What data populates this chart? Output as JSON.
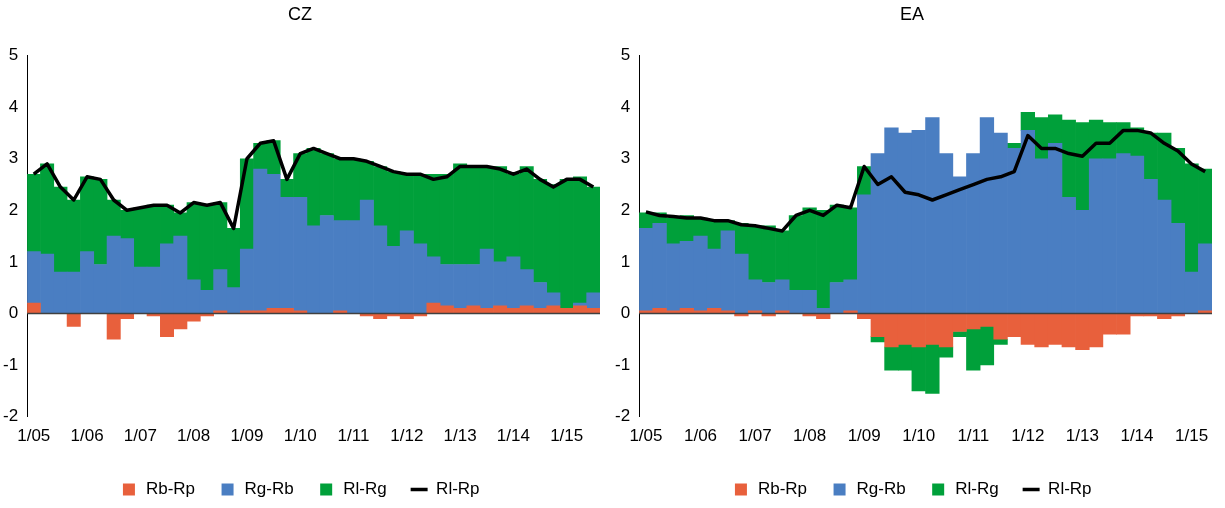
{
  "chart_data": [
    {
      "type": "bar",
      "title": "CZ",
      "stacked": true,
      "legend": "bottom",
      "ylim": [
        -2,
        5
      ],
      "yticks": [
        -2,
        -1,
        0,
        1,
        2,
        3,
        4,
        5
      ],
      "categories": [
        "1/05",
        null,
        null,
        null,
        "1/06",
        null,
        null,
        null,
        "1/07",
        null,
        null,
        null,
        "1/08",
        null,
        null,
        null,
        "1/09",
        null,
        null,
        null,
        "1/10",
        null,
        null,
        null,
        "1/11",
        null,
        null,
        null,
        "1/12",
        null,
        null,
        null,
        "1/13",
        null,
        null,
        null,
        "1/14",
        null,
        null,
        null,
        "1/15",
        null,
        null
      ],
      "ref_lines": [
        {
          "axis": "y",
          "value": 0,
          "color": "#404040"
        }
      ],
      "series": [
        {
          "name": "Rb-Rp",
          "color": "#e8603c",
          "values": [
            0.2,
            0,
            0,
            -0.25,
            0,
            0,
            -0.5,
            -0.1,
            0,
            -0.05,
            -0.45,
            -0.3,
            -0.15,
            -0.05,
            0.05,
            0,
            0.05,
            0.05,
            0.1,
            0.1,
            0.05,
            0,
            0,
            0.05,
            0,
            -0.05,
            -0.1,
            -0.05,
            -0.1,
            -0.05,
            0.2,
            0.15,
            0.1,
            0.15,
            0.1,
            0.15,
            0.1,
            0.15,
            0.1,
            0.15,
            0.1,
            0.15,
            0.1
          ]
        },
        {
          "name": "Rg-Rb",
          "color": "#4a7ec2",
          "values": [
            1.0,
            1.15,
            0.8,
            0.8,
            1.2,
            0.95,
            1.5,
            1.45,
            0.9,
            0.9,
            1.35,
            1.5,
            0.65,
            0.45,
            0.8,
            0.5,
            1.2,
            2.75,
            2.6,
            2.15,
            2.2,
            1.7,
            1.9,
            1.75,
            1.8,
            2.2,
            1.7,
            1.3,
            1.6,
            1.35,
            0.9,
            0.8,
            0.85,
            0.8,
            1.15,
            0.85,
            1.0,
            0.7,
            0.5,
            0.25,
            0.0,
            0.05,
            0.3
          ]
        },
        {
          "name": "Rl-Rg",
          "color": "#00a03a",
          "values": [
            1.5,
            1.75,
            1.65,
            1.4,
            1.45,
            1.65,
            0.7,
            0.55,
            1.15,
            1.2,
            0.75,
            0.45,
            1.5,
            1.65,
            1.3,
            1.15,
            1.75,
            0.5,
            0.65,
            0.35,
            0.85,
            1.5,
            1.2,
            1.2,
            1.2,
            0.75,
            1.15,
            1.45,
            1.1,
            1.35,
            1.6,
            1.75,
            1.95,
            1.9,
            1.6,
            1.85,
            1.6,
            2.0,
            2.0,
            2.1,
            2.5,
            2.45,
            2.05
          ]
        },
        {
          "name": "Rl-Rp",
          "type": "line",
          "color": "#000000",
          "values": [
            2.7,
            2.9,
            2.45,
            2.2,
            2.65,
            2.6,
            2.2,
            2.0,
            2.05,
            2.1,
            2.1,
            1.95,
            2.15,
            2.1,
            2.15,
            1.65,
            3.0,
            3.3,
            3.35,
            2.6,
            3.1,
            3.2,
            3.1,
            3.0,
            3.0,
            2.95,
            2.85,
            2.75,
            2.7,
            2.7,
            2.6,
            2.65,
            2.85,
            2.85,
            2.85,
            2.8,
            2.7,
            2.8,
            2.6,
            2.45,
            2.6,
            2.6,
            2.45
          ]
        }
      ]
    },
    {
      "type": "bar",
      "title": "EA",
      "stacked": true,
      "legend": "bottom",
      "ylim": [
        -2,
        5
      ],
      "yticks": [
        -2,
        -1,
        0,
        1,
        2,
        3,
        4,
        5
      ],
      "categories": [
        "1/05",
        null,
        null,
        null,
        "1/06",
        null,
        null,
        null,
        "1/07",
        null,
        null,
        null,
        "1/08",
        null,
        null,
        null,
        "1/09",
        null,
        null,
        null,
        "1/10",
        null,
        null,
        null,
        "1/11",
        null,
        null,
        null,
        "1/12",
        null,
        null,
        null,
        "1/13",
        null,
        null,
        null,
        "1/14",
        null,
        null,
        null,
        "1/15",
        null
      ],
      "ref_lines": [
        {
          "axis": "y",
          "value": 0,
          "color": "#404040"
        }
      ],
      "series": [
        {
          "name": "Rb-Rp",
          "color": "#e8603c",
          "values": [
            0.05,
            0.1,
            0.05,
            0.1,
            0.05,
            0.1,
            0.05,
            -0.05,
            0.05,
            -0.05,
            0.05,
            0,
            -0.05,
            -0.1,
            0,
            0.05,
            -0.1,
            -0.45,
            -0.65,
            -0.6,
            -0.65,
            -0.6,
            -0.65,
            -0.35,
            -0.3,
            -0.25,
            -0.5,
            -0.45,
            -0.6,
            -0.65,
            -0.6,
            -0.65,
            -0.7,
            -0.65,
            -0.4,
            -0.4,
            -0.05,
            -0.05,
            -0.1,
            -0.05,
            0,
            0.05
          ]
        },
        {
          "name": "Rg-Rb",
          "color": "#4a7ec2",
          "values": [
            1.6,
            1.65,
            1.3,
            1.3,
            1.45,
            1.15,
            1.55,
            1.15,
            0.6,
            0.6,
            0.6,
            0.45,
            0.45,
            0.1,
            0.6,
            0.6,
            2.3,
            3.1,
            3.6,
            3.5,
            3.55,
            3.8,
            3.1,
            2.65,
            3.1,
            3.8,
            3.5,
            3.2,
            3.55,
            3.0,
            3.3,
            2.25,
            2.0,
            3.0,
            3.0,
            3.1,
            3.05,
            2.6,
            2.2,
            1.75,
            0.8,
            1.3
          ]
        },
        {
          "name": "Rl-Rg",
          "color": "#00a03a",
          "values": [
            0.3,
            0.2,
            0.5,
            0.5,
            0.35,
            0.55,
            0.2,
            0.6,
            1.05,
            1.1,
            0.95,
            1.45,
            1.6,
            1.9,
            1.5,
            1.4,
            0.55,
            -0.1,
            -0.45,
            -0.5,
            -0.85,
            -0.95,
            -0.2,
            -0.1,
            -0.8,
            -0.75,
            -0.1,
            0.1,
            0.35,
            0.8,
            0.55,
            1.5,
            1.7,
            0.75,
            0.7,
            0.6,
            0.55,
            0.9,
            1.3,
            1.45,
            2.1,
            1.45
          ]
        },
        {
          "name": "Rl-Rp",
          "type": "line",
          "color": "#000000",
          "values": [
            1.97,
            1.9,
            1.88,
            1.85,
            1.85,
            1.8,
            1.8,
            1.72,
            1.7,
            1.65,
            1.6,
            1.9,
            2.0,
            1.9,
            2.1,
            2.05,
            2.85,
            2.5,
            2.65,
            2.35,
            2.3,
            2.2,
            2.3,
            2.4,
            2.5,
            2.6,
            2.65,
            2.75,
            3.45,
            3.2,
            3.2,
            3.1,
            3.05,
            3.3,
            3.3,
            3.55,
            3.55,
            3.5,
            3.3,
            3.15,
            2.9,
            2.75
          ]
        }
      ]
    }
  ]
}
